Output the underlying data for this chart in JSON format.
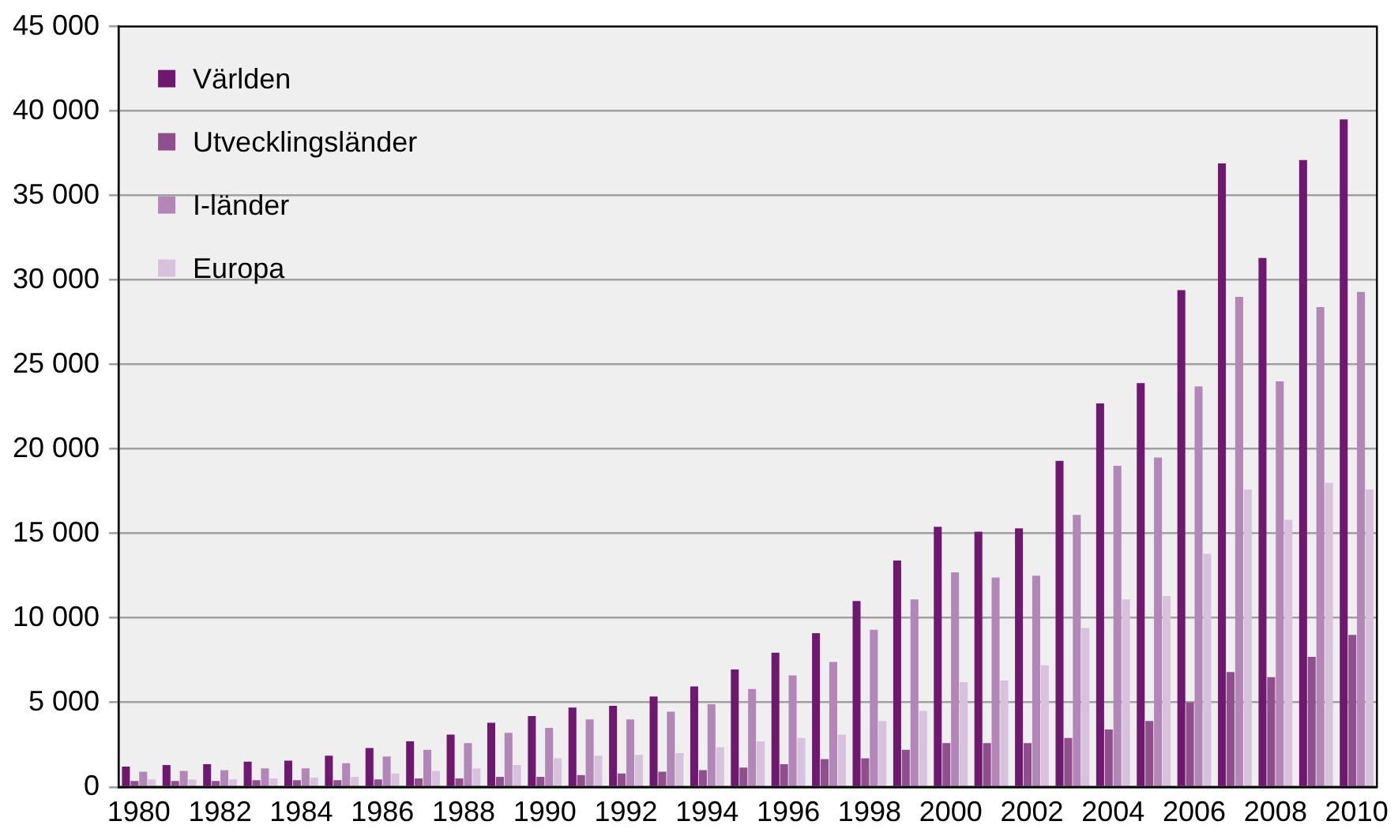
{
  "chart_data": {
    "type": "bar",
    "categories": [
      "1980",
      null,
      "1982",
      null,
      "1984",
      null,
      "1986",
      null,
      "1988",
      null,
      "1990",
      null,
      "1992",
      null,
      "1994",
      null,
      "1996",
      null,
      "1998",
      null,
      "2000",
      null,
      "2002",
      null,
      "2004",
      null,
      "2006",
      null,
      "2008",
      null,
      "2010"
    ],
    "series": [
      {
        "name": "Världen",
        "color": "#6f1870",
        "values": [
          1200,
          1300,
          1350,
          1500,
          1550,
          1850,
          2300,
          2700,
          3100,
          3800,
          4200,
          4700,
          4800,
          5350,
          5950,
          6950,
          7950,
          9100,
          11000,
          13400,
          15400,
          15100,
          15300,
          19300,
          22700,
          23900,
          29400,
          36900,
          31300,
          37100,
          39500
        ]
      },
      {
        "name": "Utvecklingsländer",
        "color": "#8e4f8c",
        "values": [
          350,
          350,
          350,
          400,
          400,
          400,
          450,
          500,
          500,
          600,
          600,
          700,
          800,
          900,
          1000,
          1150,
          1350,
          1650,
          1700,
          2200,
          2600,
          2600,
          2600,
          2900,
          3400,
          3900,
          5000,
          6800,
          6500,
          7700,
          9000
        ]
      },
      {
        "name": "I-länder",
        "color": "#b286b6",
        "values": [
          900,
          950,
          1000,
          1100,
          1100,
          1400,
          1800,
          2200,
          2600,
          3200,
          3500,
          4000,
          4000,
          4450,
          4900,
          5800,
          6600,
          7400,
          9300,
          11100,
          12700,
          12400,
          12500,
          16100,
          19000,
          19500,
          23700,
          29000,
          24000,
          28400,
          29300
        ]
      },
      {
        "name": "Europa",
        "color": "#d8c1dc",
        "values": [
          450,
          450,
          450,
          500,
          550,
          600,
          800,
          950,
          1100,
          1300,
          1700,
          1850,
          1900,
          2000,
          2350,
          2700,
          2900,
          3100,
          3900,
          4500,
          6200,
          6300,
          7200,
          9400,
          11100,
          11300,
          13800,
          17600,
          15800,
          18000,
          17600
        ]
      }
    ],
    "ylim": [
      0,
      45000
    ],
    "yticks": [
      {
        "value": 0,
        "label": "0"
      },
      {
        "value": 5000,
        "label": "5 000"
      },
      {
        "value": 10000,
        "label": "10 000"
      },
      {
        "value": 15000,
        "label": "15 000"
      },
      {
        "value": 20000,
        "label": "20 000"
      },
      {
        "value": 25000,
        "label": "25 000"
      },
      {
        "value": 30000,
        "label": "30 000"
      },
      {
        "value": 35000,
        "label": "35 000"
      },
      {
        "value": 40000,
        "label": "40 000"
      },
      {
        "value": 45000,
        "label": "45 000"
      }
    ],
    "grid": "y",
    "legend": "top left"
  }
}
